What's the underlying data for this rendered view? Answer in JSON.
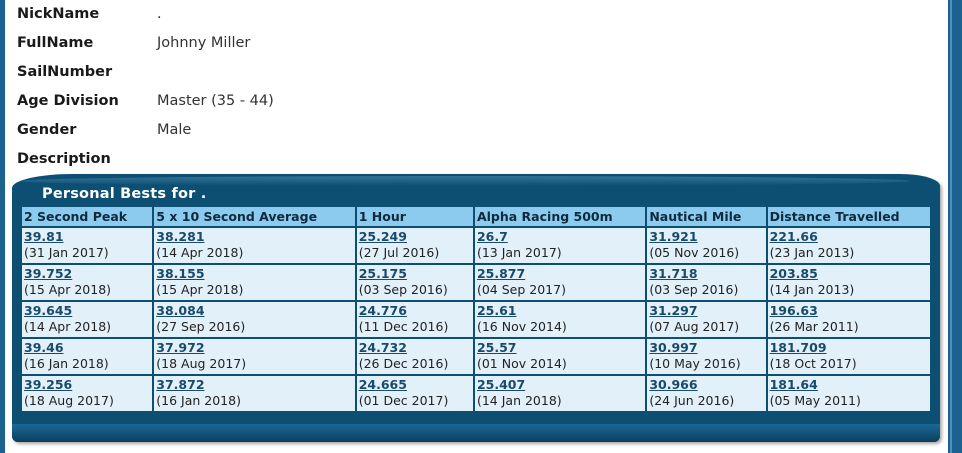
{
  "profile": {
    "fields": [
      {
        "label": "NickName",
        "value": "."
      },
      {
        "label": "FullName",
        "value": "Johnny Miller"
      },
      {
        "label": "SailNumber",
        "value": ""
      },
      {
        "label": "Age Division",
        "value": "Master (35 - 44)"
      },
      {
        "label": "Gender",
        "value": "Male"
      },
      {
        "label": "Description",
        "value": ""
      }
    ]
  },
  "personal_bests": {
    "title": "Personal Bests for .",
    "columns": [
      "2 Second Peak",
      "5 x 10 Second Average",
      "1 Hour",
      "Alpha Racing 500m",
      "Nautical Mile",
      "Distance Travelled"
    ],
    "rows": [
      [
        {
          "value": "39.81",
          "date": "(31 Jan 2017)"
        },
        {
          "value": "38.281",
          "date": "(14 Apr 2018)"
        },
        {
          "value": "25.249",
          "date": "(27 Jul 2016)"
        },
        {
          "value": "26.7",
          "date": "(13 Jan 2017)"
        },
        {
          "value": "31.921",
          "date": "(05 Nov 2016)"
        },
        {
          "value": "221.66",
          "date": "(23 Jan 2013)"
        }
      ],
      [
        {
          "value": "39.752",
          "date": "(15 Apr 2018)"
        },
        {
          "value": "38.155",
          "date": "(15 Apr 2018)"
        },
        {
          "value": "25.175",
          "date": "(03 Sep 2016)"
        },
        {
          "value": "25.877",
          "date": "(04 Sep 2017)"
        },
        {
          "value": "31.718",
          "date": "(03 Sep 2016)"
        },
        {
          "value": "203.85",
          "date": "(14 Jan 2013)"
        }
      ],
      [
        {
          "value": "39.645",
          "date": "(14 Apr 2018)"
        },
        {
          "value": "38.084",
          "date": "(27 Sep 2016)"
        },
        {
          "value": "24.776",
          "date": "(11 Dec 2016)"
        },
        {
          "value": "25.61",
          "date": "(16 Nov 2014)"
        },
        {
          "value": "31.297",
          "date": "(07 Aug 2017)"
        },
        {
          "value": "196.63",
          "date": "(26 Mar 2011)"
        }
      ],
      [
        {
          "value": "39.46",
          "date": "(16 Jan 2018)"
        },
        {
          "value": "37.972",
          "date": "(18 Aug 2017)"
        },
        {
          "value": "24.732",
          "date": "(26 Dec 2016)"
        },
        {
          "value": "25.57",
          "date": "(01 Nov 2014)"
        },
        {
          "value": "30.997",
          "date": "(10 May 2016)"
        },
        {
          "value": "181.709",
          "date": "(18 Oct 2017)"
        }
      ],
      [
        {
          "value": "39.256",
          "date": "(18 Aug 2017)"
        },
        {
          "value": "37.872",
          "date": "(16 Jan 2018)"
        },
        {
          "value": "24.665",
          "date": "(01 Dec 2017)"
        },
        {
          "value": "25.407",
          "date": "(14 Jan 2018)"
        },
        {
          "value": "30.966",
          "date": "(24 Jun 2016)"
        },
        {
          "value": "181.64",
          "date": "(05 May 2011)"
        }
      ]
    ]
  }
}
